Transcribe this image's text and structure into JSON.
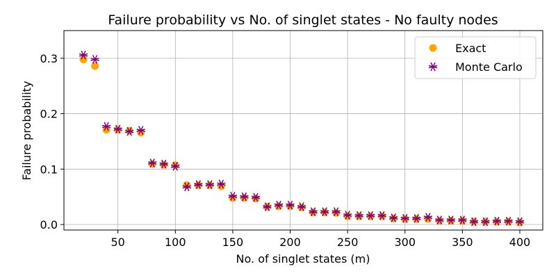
{
  "chart_data": {
    "type": "scatter",
    "title": "Failure probability vs No. of singlet states - No faulty nodes",
    "xlabel": "No. of singlet states (m)",
    "ylabel": "Failure probability",
    "xlim": [
      3,
      420
    ],
    "ylim": [
      -0.01,
      0.35
    ],
    "xticks": [
      50,
      100,
      150,
      200,
      250,
      300,
      350,
      400
    ],
    "yticks": [
      0.0,
      0.1,
      0.2,
      0.3
    ],
    "ytick_labels": [
      "0.0",
      "0.1",
      "0.2",
      "0.3"
    ],
    "grid": true,
    "legend": "top-right",
    "x": [
      20,
      30,
      40,
      50,
      60,
      70,
      80,
      90,
      100,
      110,
      120,
      130,
      140,
      150,
      160,
      170,
      180,
      190,
      200,
      210,
      220,
      230,
      240,
      250,
      260,
      270,
      280,
      290,
      300,
      310,
      320,
      330,
      340,
      350,
      360,
      370,
      380,
      390,
      400
    ],
    "series": [
      {
        "name": "Exact",
        "marker": "circle",
        "color": "#FFA500",
        "values": [
          0.298,
          0.286,
          0.171,
          0.171,
          0.169,
          0.166,
          0.109,
          0.108,
          0.107,
          0.071,
          0.071,
          0.071,
          0.069,
          0.048,
          0.048,
          0.047,
          0.032,
          0.033,
          0.033,
          0.031,
          0.022,
          0.022,
          0.021,
          0.015,
          0.015,
          0.015,
          0.015,
          0.011,
          0.01,
          0.01,
          0.01,
          0.007,
          0.007,
          0.007,
          0.005,
          0.005,
          0.005,
          0.005,
          0.004
        ]
      },
      {
        "name": "Monte Carlo",
        "marker": "x",
        "color": "#800080",
        "values": [
          0.306,
          0.298,
          0.177,
          0.172,
          0.168,
          0.17,
          0.111,
          0.109,
          0.105,
          0.068,
          0.072,
          0.072,
          0.073,
          0.051,
          0.05,
          0.049,
          0.032,
          0.035,
          0.035,
          0.032,
          0.023,
          0.023,
          0.023,
          0.017,
          0.016,
          0.016,
          0.016,
          0.012,
          0.011,
          0.011,
          0.013,
          0.008,
          0.008,
          0.008,
          0.005,
          0.005,
          0.006,
          0.006,
          0.005
        ]
      }
    ]
  }
}
